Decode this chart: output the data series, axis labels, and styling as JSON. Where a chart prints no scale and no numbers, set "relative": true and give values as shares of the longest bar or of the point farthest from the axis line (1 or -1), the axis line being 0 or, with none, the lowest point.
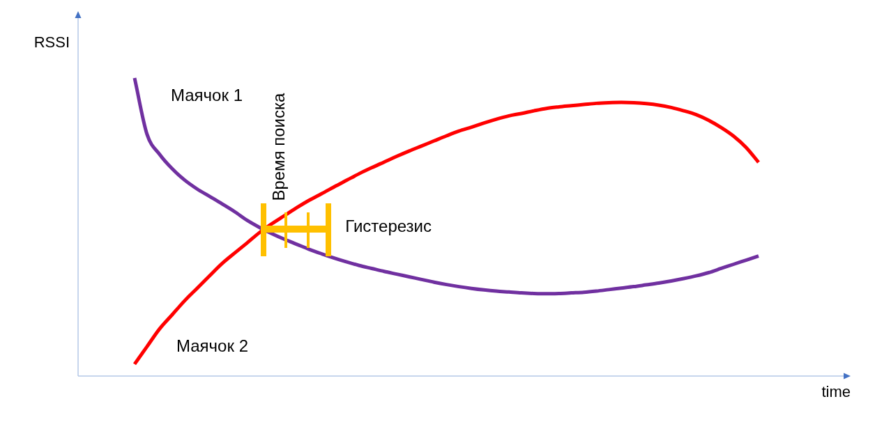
{
  "chart_data": {
    "type": "line",
    "xlabel": "time",
    "ylabel": "RSSI",
    "relative": true,
    "categories": [
      null,
      null,
      null,
      null,
      null,
      null,
      null,
      null,
      null,
      null,
      null,
      null,
      null,
      null,
      null,
      null,
      null,
      null,
      null,
      null,
      null,
      null,
      null,
      null,
      null,
      null,
      null,
      null,
      null,
      null,
      null,
      null,
      null,
      null,
      null,
      null,
      null,
      null,
      null,
      null,
      null,
      null,
      null,
      null,
      null,
      null,
      null,
      null,
      null,
      null,
      null
    ],
    "series": [
      {
        "name": "Маячок 1",
        "color": "#7030a0",
        "values": [
          1,
          0.811,
          0.744,
          0.696,
          0.658,
          0.628,
          0.603,
          0.578,
          0.552,
          0.523,
          0.499,
          0.478,
          0.459,
          0.442,
          0.425,
          0.41,
          0.396,
          0.383,
          0.371,
          0.361,
          0.351,
          0.342,
          0.333,
          0.324,
          0.315,
          0.307,
          0.3,
          0.294,
          0.289,
          0.285,
          0.282,
          0.279,
          0.277,
          0.276,
          0.277,
          0.279,
          0.281,
          0.285,
          0.29,
          0.295,
          0.3,
          0.306,
          0.312,
          0.319,
          0.327,
          0.336,
          0.347,
          0.361,
          0.375,
          0.389,
          0.403
        ]
      },
      {
        "name": "Маячок 2",
        "color": "#ff0000",
        "values": [
          0.04,
          0.099,
          0.158,
          0.205,
          0.252,
          0.294,
          0.336,
          0.377,
          0.412,
          0.446,
          0.481,
          0.511,
          0.538,
          0.565,
          0.59,
          0.612,
          0.635,
          0.657,
          0.679,
          0.699,
          0.718,
          0.737,
          0.755,
          0.772,
          0.789,
          0.806,
          0.822,
          0.835,
          0.849,
          0.862,
          0.873,
          0.881,
          0.89,
          0.898,
          0.903,
          0.907,
          0.911,
          0.915,
          0.917,
          0.918,
          0.917,
          0.914,
          0.909,
          0.901,
          0.89,
          0.877,
          0.858,
          0.834,
          0.805,
          0.767,
          0.717
        ]
      }
    ],
    "annotations": [
      "Время поиска",
      "Гистерезис"
    ]
  }
}
